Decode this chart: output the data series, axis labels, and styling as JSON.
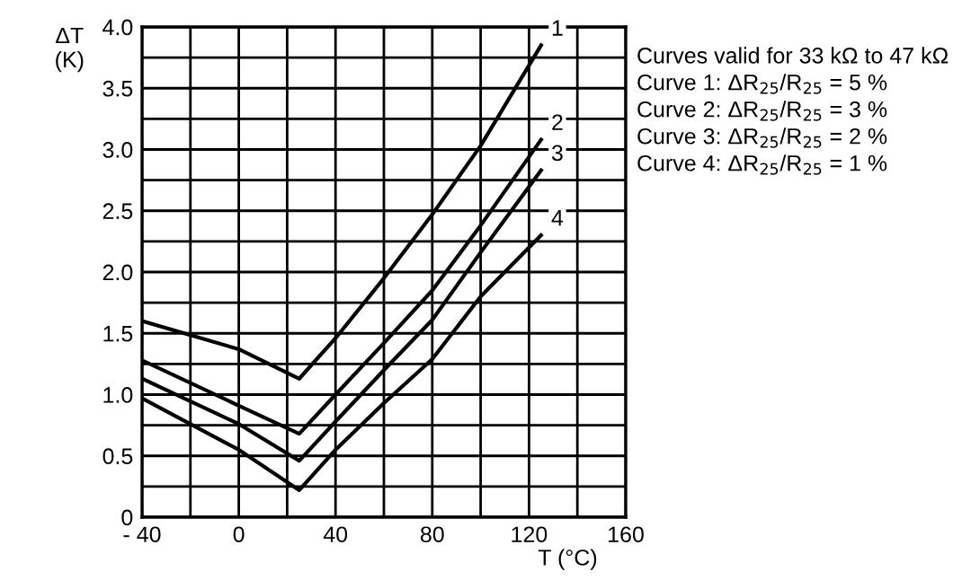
{
  "chart_data": {
    "type": "line",
    "xlabel": "T (°C)",
    "ylabel": "ΔT\n(K)",
    "x": [
      -40,
      0,
      25,
      40,
      60,
      80,
      100,
      125
    ],
    "series": [
      {
        "name": "1",
        "color": "#000000",
        "values": [
          1.6,
          1.37,
          1.13,
          1.46,
          1.95,
          2.47,
          3.03,
          3.85
        ]
      },
      {
        "name": "2",
        "color": "#000000",
        "values": [
          1.28,
          0.91,
          0.68,
          1.0,
          1.42,
          1.85,
          2.38,
          3.08
        ]
      },
      {
        "name": "3",
        "color": "#000000",
        "values": [
          1.13,
          0.76,
          0.46,
          0.78,
          1.2,
          1.61,
          2.16,
          2.83
        ]
      },
      {
        "name": "4",
        "color": "#000000",
        "values": [
          0.97,
          0.55,
          0.22,
          0.55,
          0.93,
          1.29,
          1.8,
          2.3
        ]
      }
    ],
    "xlim": [
      -40,
      160
    ],
    "ylim": [
      0,
      4.0
    ],
    "xticks": [
      {
        "value": -40,
        "label": "- 40"
      },
      {
        "value": -20,
        "label": null
      },
      0,
      {
        "value": 20,
        "label": null
      },
      40,
      {
        "value": 60,
        "label": null
      },
      80,
      {
        "value": 100,
        "label": null
      },
      120,
      {
        "value": 140,
        "label": null
      },
      160
    ],
    "yticks": [
      0,
      {
        "value": 0.25,
        "label": null
      },
      0.5,
      {
        "value": 0.75,
        "label": null
      },
      {
        "value": 1.0,
        "label": "1.0"
      },
      {
        "value": 1.25,
        "label": null
      },
      1.5,
      {
        "value": 1.75,
        "label": null
      },
      {
        "value": 2.0,
        "label": "2.0"
      },
      {
        "value": 2.25,
        "label": null
      },
      2.5,
      {
        "value": 2.75,
        "label": null
      },
      {
        "value": 3.0,
        "label": "3.0"
      },
      {
        "value": 3.25,
        "label": null
      },
      3.5,
      {
        "value": 3.75,
        "label": null
      },
      {
        "value": 4.0,
        "label": "4.0"
      }
    ],
    "grid": true,
    "legend": false,
    "marker": "none",
    "line_style": "solid",
    "annotations": [
      "Curves valid for 33 kΩ to 47 kΩ",
      "Curve 1: ΔR$_{25}$/R$_{25}$ = 5 %",
      "Curve 2: ΔR$_{25}$/R$_{25}$ = 3 %",
      "Curve 3: ΔR$_{25}$/R$_{25}$ = 2 %",
      "Curve 4: ΔR$_{25}$/R$_{25}$ = 1 %"
    ]
  }
}
